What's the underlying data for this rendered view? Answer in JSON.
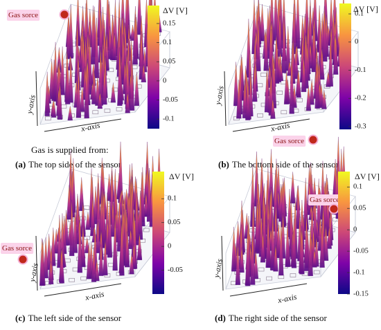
{
  "intro": "Gas is supplied from:",
  "panels": [
    {
      "label": "(a)",
      "caption": "The top side of the sensor",
      "gas_label": "Gas sorce",
      "x_axis": "x-axis",
      "y_axis": "y-axis",
      "colorbar": {
        "title": "ΔV [V]",
        "clim": [
          -0.125,
          0.197
        ],
        "ticks": [
          0.15,
          0.1,
          0.05,
          0,
          -0.05,
          -0.1
        ]
      }
    },
    {
      "label": "(b)",
      "caption": "The bottom side of the sensor",
      "gas_label": "Gas sorce",
      "x_axis": "x-axis",
      "y_axis": "y-axis",
      "colorbar": {
        "title": "ΔV [V]",
        "clim": [
          -0.31,
          0.137
        ],
        "ticks": [
          0.1,
          0,
          -0.1,
          -0.2,
          -0.3
        ]
      }
    },
    {
      "label": "(c)",
      "caption": "The left side of the sensor",
      "gas_label": "Gas sorce",
      "x_axis": "x-axis",
      "y_axis": "y-axis",
      "colorbar": {
        "title": "ΔV [V]",
        "clim": [
          -0.1,
          0.157
        ],
        "ticks": [
          0.1,
          0.05,
          0,
          -0.05
        ]
      }
    },
    {
      "label": "(d)",
      "caption": "The right side of the sensor",
      "gas_label": "Gas sorce",
      "x_axis": "x-axis",
      "y_axis": "y-axis",
      "colorbar": {
        "title": "ΔV [V]",
        "clim": [
          -0.15,
          0.136
        ],
        "ticks": [
          0.1,
          0.05,
          0,
          -0.05,
          -0.1,
          -0.15
        ]
      }
    }
  ]
}
